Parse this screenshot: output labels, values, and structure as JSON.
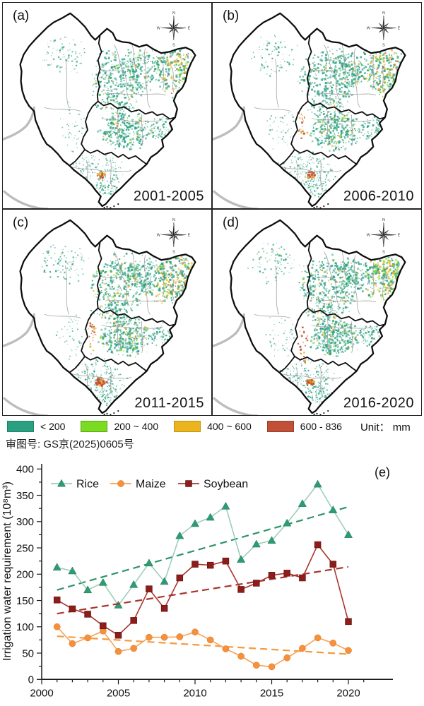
{
  "maps": {
    "panels": [
      {
        "label": "(a)",
        "period": "2001-2005"
      },
      {
        "label": "(b)",
        "period": "2006-2010"
      },
      {
        "label": "(c)",
        "period": "2011-2015"
      },
      {
        "label": "(d)",
        "period": "2016-2020"
      }
    ],
    "compass": {
      "n": "N",
      "e": "E",
      "s": "S",
      "w": "W"
    },
    "legend": {
      "items": [
        {
          "label": "< 200",
          "color": "#2aa081",
          "border": "#1d8468"
        },
        {
          "label": "200 ~ 400",
          "color": "#7bdb22",
          "border": "#55a80f"
        },
        {
          "label": "400 ~ 600",
          "color": "#ecb41e",
          "border": "#c29211"
        },
        {
          "label": "600 - 836",
          "color": "#c05138",
          "border": "#9c3f2a"
        }
      ],
      "unit_label": "Unit： mm"
    },
    "approval_caption": "审图号: GS京(2025)0605号",
    "speckle_colors": {
      "teal": "#2aa081",
      "green": "#7bd922",
      "yellow": "#e9b31c",
      "orange": "#c05138"
    }
  },
  "chart_data": {
    "type": "line",
    "panel_label": "(e)",
    "title": "",
    "xlabel": "",
    "ylabel": "Irrigation water requirement (10⁸m³)",
    "xlim": [
      2000,
      2021.5
    ],
    "ylim": [
      0,
      400
    ],
    "x_major_ticks": [
      2000,
      2005,
      2010,
      2015,
      2020
    ],
    "y_major_ticks": [
      0,
      50,
      100,
      150,
      200,
      250,
      300,
      350,
      400
    ],
    "grid": false,
    "legend_position": "top-left",
    "x": [
      2001,
      2002,
      2003,
      2004,
      2005,
      2006,
      2007,
      2008,
      2009,
      2010,
      2011,
      2012,
      2013,
      2014,
      2015,
      2016,
      2017,
      2018,
      2019,
      2020
    ],
    "series": [
      {
        "name": "Rice",
        "marker": "triangle",
        "marker_color": "#2e9b72",
        "line_color": "#9ecdbd",
        "trend_color": "#2e9468",
        "values": [
          213,
          206,
          170,
          184,
          141,
          180,
          221,
          186,
          273,
          296,
          308,
          329,
          228,
          257,
          264,
          297,
          334,
          371,
          322,
          275
        ],
        "trend": {
          "x_start": 2001,
          "y_start": 170,
          "x_end": 2020,
          "y_end": 328
        }
      },
      {
        "name": "Maize",
        "marker": "circle",
        "marker_color": "#f5913e",
        "line_color": "#f7a155",
        "trend_color": "#f59a3e",
        "values": [
          100,
          68,
          79,
          92,
          53,
          59,
          80,
          80,
          81,
          90,
          75,
          58,
          44,
          27,
          24,
          41,
          59,
          79,
          69,
          55
        ],
        "trend": {
          "x_start": 2001,
          "y_start": 82,
          "x_end": 2020,
          "y_end": 48
        }
      },
      {
        "name": "Soybean",
        "marker": "square",
        "marker_color": "#8e1d1a",
        "line_color": "#a8352e",
        "trend_color": "#a8352e",
        "values": [
          151,
          134,
          124,
          102,
          84,
          112,
          172,
          135,
          193,
          219,
          217,
          225,
          171,
          183,
          198,
          202,
          193,
          256,
          219,
          110
        ],
        "trend": {
          "x_start": 2001,
          "y_start": 125,
          "x_end": 2020,
          "y_end": 214
        }
      }
    ]
  }
}
